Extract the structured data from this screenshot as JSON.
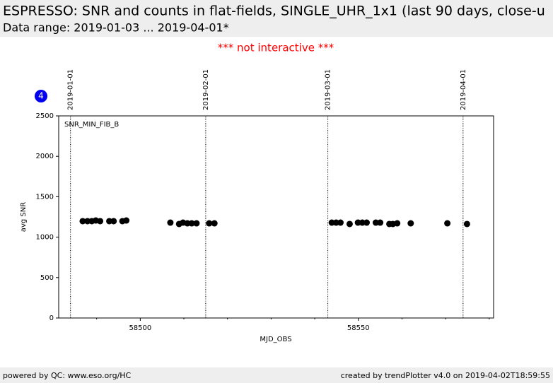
{
  "header": {
    "title": "ESPRESSO: SNR and counts in flat-fields, SINGLE_UHR_1x1 (last 90 days, close-u",
    "subtitle": "Data range: 2019-01-03 ... 2019-04-01*",
    "notice": "*** not interactive ***",
    "badge": "4"
  },
  "footer": {
    "left": "powered by QC: www.eso.org/HC",
    "right": "created by trendPlotter v4.0 on 2019-04-02T18:59:55"
  },
  "chart_data": {
    "type": "scatter",
    "panel_label": "SNR_MIN_FIB_B",
    "xlabel": "MJD_OBS",
    "ylabel": "avg SNR",
    "color": "#000000",
    "x": [
      58486.8,
      58487.9,
      58488.9,
      58489.8,
      58490.8,
      58492.9,
      58493.9,
      58495.9,
      58496.8,
      58506.9,
      58508.9,
      58509.8,
      58510.8,
      58511.8,
      58512.9,
      58515.8,
      58517.0,
      58543.9,
      58544.9,
      58545.9,
      58548.0,
      58549.9,
      58550.9,
      58551.9,
      58554.0,
      58555.0,
      58557.1,
      58557.9,
      58558.9,
      58562.0,
      58570.4,
      58574.9
    ],
    "values": [
      1198,
      1198,
      1198,
      1206,
      1198,
      1198,
      1198,
      1198,
      1206,
      1180,
      1163,
      1180,
      1171,
      1171,
      1171,
      1171,
      1171,
      1180,
      1180,
      1180,
      1163,
      1180,
      1180,
      1180,
      1180,
      1180,
      1163,
      1163,
      1171,
      1171,
      1171,
      1163
    ],
    "xlim": [
      58481.3,
      58581.0
    ],
    "ylim": [
      0,
      2500
    ],
    "xticks": [
      58500,
      58550
    ],
    "xminorticks": [
      58490,
      58510,
      58520,
      58530,
      58540,
      58560,
      58570,
      58580
    ],
    "yticks": [
      0,
      500,
      1000,
      1500,
      2000,
      2500
    ],
    "vlines": [
      {
        "x": 58484,
        "label": "2019-01-01"
      },
      {
        "x": 58515,
        "label": "2019-02-01"
      },
      {
        "x": 58543,
        "label": "2019-03-01"
      },
      {
        "x": 58574,
        "label": "2019-04-01"
      }
    ]
  }
}
